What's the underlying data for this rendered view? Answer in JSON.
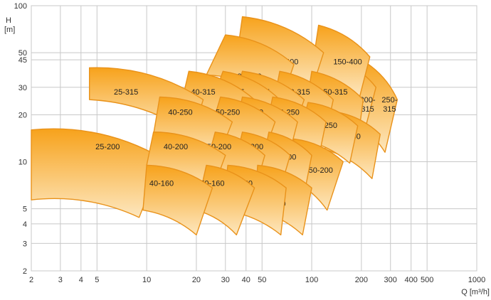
{
  "chart_data": {
    "type": "area",
    "title": "",
    "xlabel": "Q [m³/h]",
    "ylabel_line1": "H",
    "ylabel_line2": "[m]",
    "x_scale": "log",
    "y_scale": "log",
    "xlim": [
      2,
      1000
    ],
    "ylim": [
      2,
      100
    ],
    "grid": true,
    "x_ticks": [
      {
        "v": 2,
        "label": "2"
      },
      {
        "v": 3,
        "label": "3"
      },
      {
        "v": 4,
        "label": "4"
      },
      {
        "v": 5,
        "label": "5"
      },
      {
        "v": 10,
        "label": "10"
      },
      {
        "v": 20,
        "label": "20"
      },
      {
        "v": 30,
        "label": "30"
      },
      {
        "v": 40,
        "label": "40"
      },
      {
        "v": 50,
        "label": "50"
      },
      {
        "v": 100,
        "label": "100"
      },
      {
        "v": 200,
        "label": "200"
      },
      {
        "v": 300,
        "label": "300"
      },
      {
        "v": 400,
        "label": "400"
      },
      {
        "v": 500,
        "label": "500"
      },
      {
        "v": 1000,
        "label": "1000"
      }
    ],
    "y_ticks": [
      {
        "v": 2,
        "label": "2"
      },
      {
        "v": 3,
        "label": "3"
      },
      {
        "v": 4,
        "label": "4"
      },
      {
        "v": 5,
        "label": "5"
      },
      {
        "v": 10,
        "label": "10"
      },
      {
        "v": 20,
        "label": "20"
      },
      {
        "v": 30,
        "label": "30"
      },
      {
        "v": 45,
        "label": "45"
      },
      {
        "v": 50,
        "label": "50"
      },
      {
        "v": 100,
        "label": "100"
      }
    ],
    "colors": {
      "fill_top": "#f7a21b",
      "fill_bottom": "#fde7bf",
      "stroke": "#e9921a",
      "grid": "#c8c8c8"
    },
    "regions": [
      {
        "name": "250-315",
        "label_lines": [
          "250-",
          "315"
        ],
        "tl": [
          200,
          45
        ],
        "tr": [
          330,
          25
        ],
        "br": [
          278,
          11.5
        ],
        "bl": [
          165,
          19
        ],
        "label_at": [
          296,
          24
        ]
      },
      {
        "name": "200-315",
        "label_lines": [
          "200-",
          "315"
        ],
        "tl": [
          140,
          45
        ],
        "tr": [
          245,
          30
        ],
        "br": [
          210,
          16
        ],
        "bl": [
          118,
          24
        ],
        "label_at": [
          218,
          24
        ]
      },
      {
        "name": "150-400",
        "label_lines": [
          "150-400"
        ],
        "tl": [
          110,
          75
        ],
        "tr": [
          225,
          47
        ],
        "br": [
          195,
          26
        ],
        "bl": [
          100,
          38
        ],
        "label_at": [
          165,
          42
        ]
      },
      {
        "name": "100-400",
        "label_lines": [
          "100-400"
        ],
        "tl": [
          38,
          85
        ],
        "tr": [
          118,
          50
        ],
        "br": [
          100,
          29
        ],
        "bl": [
          35,
          45
        ],
        "label_at": [
          68,
          42
        ]
      },
      {
        "name": "80-400",
        "label_lines": [
          "80-400"
        ],
        "tl": [
          30,
          65
        ],
        "tr": [
          78,
          42
        ],
        "br": [
          66,
          25
        ],
        "bl": [
          23,
          36
        ],
        "label_at": [
          42,
          34
        ]
      },
      {
        "name": "150-315",
        "label_lines": [
          "150-315"
        ],
        "tl": [
          100,
          38
        ],
        "tr": [
          205,
          25
        ],
        "br": [
          188,
          12.5
        ],
        "bl": [
          91,
          20
        ],
        "label_at": [
          135,
          27
        ]
      },
      {
        "name": "100-315",
        "label_lines": [
          "100-315"
        ],
        "tl": [
          64,
          38
        ],
        "tr": [
          135,
          25
        ],
        "br": [
          122,
          15
        ],
        "bl": [
          58,
          22
        ],
        "label_at": [
          80,
          27
        ]
      },
      {
        "name": "80-315",
        "label_lines": [
          "80-315"
        ],
        "tl": [
          38,
          38
        ],
        "tr": [
          90,
          25
        ],
        "br": [
          76,
          15
        ],
        "bl": [
          33,
          22
        ],
        "label_at": [
          47,
          27
        ]
      },
      {
        "name": "50-315",
        "label_lines": [
          "50-315"
        ],
        "tl": [
          29,
          38
        ],
        "tr": [
          64,
          25
        ],
        "br": [
          52,
          15
        ],
        "bl": [
          24,
          22
        ],
        "label_at": [
          33,
          27
        ]
      },
      {
        "name": "40-315",
        "label_lines": [
          "40-315"
        ],
        "tl": [
          18,
          38
        ],
        "tr": [
          45,
          25
        ],
        "br": [
          35,
          15
        ],
        "bl": [
          16,
          22
        ],
        "label_at": [
          22,
          27
        ]
      },
      {
        "name": "25-315",
        "label_lines": [
          "25-315"
        ],
        "tl": [
          4.5,
          40
        ],
        "tr": [
          22,
          25
        ],
        "br": [
          19,
          15
        ],
        "bl": [
          4.5,
          25
        ],
        "label_at": [
          7.5,
          27
        ]
      },
      {
        "name": "200-250",
        "label_lines": [
          "200-250"
        ],
        "tl": [
          135,
          21
        ],
        "tr": [
          260,
          15
        ],
        "br": [
          232,
          7.8
        ],
        "bl": [
          120,
          12
        ],
        "label_at": [
          162,
          14
        ]
      },
      {
        "name": "150-250",
        "label_lines": [
          "150-250"
        ],
        "tl": [
          95,
          24
        ],
        "tr": [
          190,
          17
        ],
        "br": [
          170,
          9.8
        ],
        "bl": [
          83,
          14
        ],
        "label_at": [
          117,
          16.5
        ]
      },
      {
        "name": "100-250",
        "label_lines": [
          "100-250"
        ],
        "tl": [
          58,
          26
        ],
        "tr": [
          122,
          18
        ],
        "br": [
          110,
          10.5
        ],
        "bl": [
          52,
          15
        ],
        "label_at": [
          69,
          20
        ]
      },
      {
        "name": "80-250",
        "label_lines": [
          "80-250"
        ],
        "tl": [
          38,
          26
        ],
        "tr": [
          82,
          18
        ],
        "br": [
          72,
          10.5
        ],
        "bl": [
          34,
          15
        ],
        "label_at": [
          43,
          20
        ]
      },
      {
        "name": "50-250",
        "label_lines": [
          "50-250"
        ],
        "tl": [
          28,
          26
        ],
        "tr": [
          60,
          18
        ],
        "br": [
          50,
          10.5
        ],
        "bl": [
          24,
          15
        ],
        "label_at": [
          31,
          20
        ]
      },
      {
        "name": "40-250",
        "label_lines": [
          "40-250"
        ],
        "tl": [
          12,
          26
        ],
        "tr": [
          33,
          18
        ],
        "br": [
          27,
          10.5
        ],
        "bl": [
          11,
          15
        ],
        "label_at": [
          16,
          20
        ]
      },
      {
        "name": "25-200",
        "label_lines": [
          "25-200"
        ],
        "tl": [
          2,
          16
        ],
        "tr": [
          12.5,
          10.5
        ],
        "br": [
          9,
          4.4
        ],
        "bl": [
          2,
          5.7
        ],
        "label_at": [
          5.8,
          12
        ]
      },
      {
        "name": "150-200",
        "label_lines": [
          "150-200"
        ],
        "tl": [
          78,
          14
        ],
        "tr": [
          155,
          10
        ],
        "br": [
          124,
          4.9
        ],
        "bl": [
          70,
          8
        ],
        "label_at": [
          110,
          8.5
        ]
      },
      {
        "name": "100-200",
        "label_lines": [
          "100-200"
        ],
        "tl": [
          55,
          15.5
        ],
        "tr": [
          100,
          11
        ],
        "br": [
          90,
          6.2
        ],
        "bl": [
          50,
          9.5
        ],
        "label_at": [
          66,
          10.3
        ]
      },
      {
        "name": "80-200",
        "label_lines": [
          "80-200"
        ],
        "tl": [
          38,
          15.5
        ],
        "tr": [
          74,
          11
        ],
        "br": [
          64,
          6.5
        ],
        "bl": [
          34,
          9.5
        ],
        "label_at": [
          43,
          12
        ]
      },
      {
        "name": "50-200",
        "label_lines": [
          "50-200"
        ],
        "tl": [
          26,
          15.5
        ],
        "tr": [
          52,
          11
        ],
        "br": [
          45,
          6.5
        ],
        "bl": [
          23,
          9.5
        ],
        "label_at": [
          27.5,
          12
        ]
      },
      {
        "name": "40-200",
        "label_lines": [
          "40-200"
        ],
        "tl": [
          11,
          15.5
        ],
        "tr": [
          30,
          11
        ],
        "br": [
          25,
          6.5
        ],
        "bl": [
          10,
          9.5
        ],
        "label_at": [
          15,
          12
        ]
      },
      {
        "name": "100-160",
        "label_lines": [
          "100-160"
        ],
        "tl": [
          47,
          9.5
        ],
        "tr": [
          100,
          6.8
        ],
        "br": [
          88,
          3.4
        ],
        "bl": [
          45,
          4.9
        ],
        "label_at": [
          57,
          5.2
        ]
      },
      {
        "name": "80-160",
        "label_lines": [
          "80-160"
        ],
        "tl": [
          31,
          9.5
        ],
        "tr": [
          70,
          6.8
        ],
        "br": [
          65,
          3.4
        ],
        "bl": [
          29,
          4.9
        ],
        "label_at": [
          37,
          7
        ]
      },
      {
        "name": "50-160",
        "label_lines": [
          "50-160"
        ],
        "tl": [
          23,
          9.5
        ],
        "tr": [
          45,
          6.8
        ],
        "br": [
          35,
          3.4
        ],
        "bl": [
          20,
          4.9
        ],
        "label_at": [
          25,
          7
        ]
      },
      {
        "name": "40-160",
        "label_lines": [
          "40-160"
        ],
        "tl": [
          10,
          9.5
        ],
        "tr": [
          25,
          6.8
        ],
        "br": [
          20,
          3.4
        ],
        "bl": [
          9.5,
          4.9
        ],
        "label_at": [
          12.3,
          7
        ]
      }
    ]
  }
}
